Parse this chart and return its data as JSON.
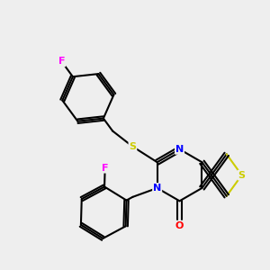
{
  "background_color": "#eeeeee",
  "bond_color": "#000000",
  "atom_colors": {
    "S": "#cccc00",
    "N": "#0000ff",
    "O": "#ff0000",
    "F": "#ff00ff",
    "C": "#000000"
  },
  "lw": 1.5,
  "dbo": 0.055
}
